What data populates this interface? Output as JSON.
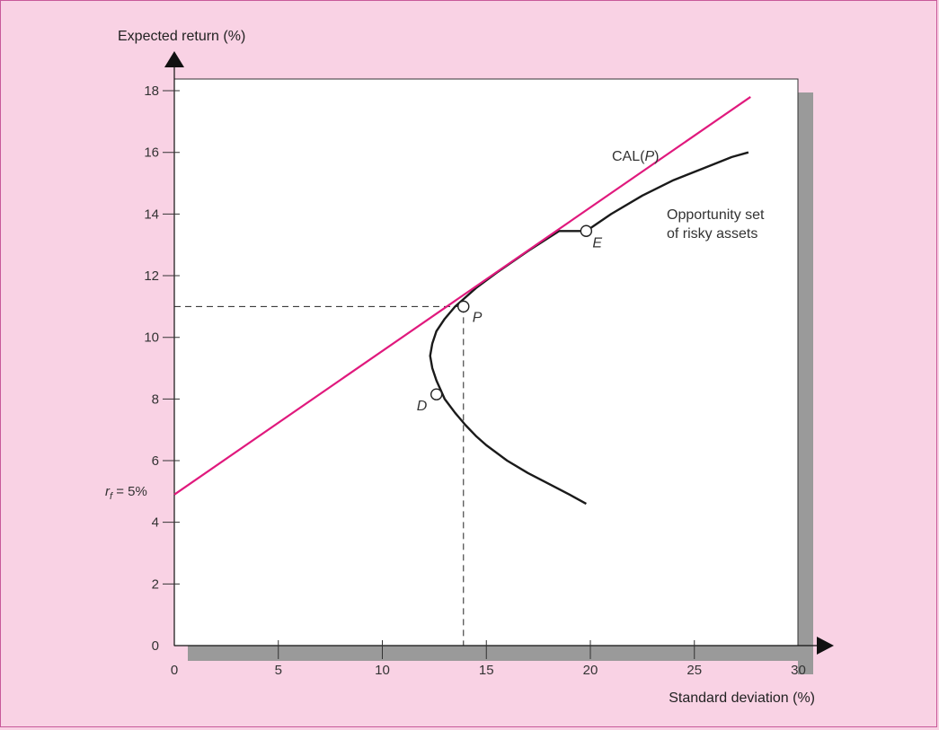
{
  "chart_data": {
    "type": "line",
    "xlabel": "Standard deviation (%)",
    "ylabel": "Expected return (%)",
    "xlim": [
      0,
      30
    ],
    "ylim": [
      0,
      18
    ],
    "x_ticks": [
      0,
      5,
      10,
      15,
      20,
      25,
      30
    ],
    "y_ticks": [
      0,
      2,
      4,
      6,
      8,
      10,
      12,
      14,
      16,
      18
    ],
    "grid": false,
    "series": [
      {
        "name": "CAL(P)",
        "color": "#e0197d",
        "x": [
          0,
          27.7
        ],
        "y": [
          4.9,
          17.8
        ]
      },
      {
        "name": "Opportunity set of risky assets",
        "color": "#1a1a1a",
        "x": [
          19.8,
          19.0,
          18.0,
          17.0,
          16.0,
          15.0,
          14.5,
          14.0,
          13.5,
          13.0,
          12.6,
          12.4,
          12.3,
          12.4,
          12.6,
          13.0,
          13.5,
          14.5,
          15.5,
          17.0,
          18.5,
          19.8
        ],
        "y": [
          4.6,
          4.9,
          5.25,
          5.6,
          6.0,
          6.5,
          6.8,
          7.15,
          7.55,
          8.0,
          8.6,
          9.0,
          9.4,
          9.8,
          10.2,
          10.6,
          11.0,
          11.6,
          12.1,
          12.8,
          13.45,
          14.0
        ],
        "x_upper": [
          19.8,
          21.0,
          22.5,
          24.0,
          25.5,
          26.8,
          27.6
        ],
        "y_upper": [
          13.45,
          14.0,
          14.6,
          15.1,
          15.5,
          15.85,
          16.0
        ]
      }
    ],
    "points": [
      {
        "label": "P",
        "x": 13.9,
        "y": 11.0
      },
      {
        "label": "E",
        "x": 19.8,
        "y": 13.45
      },
      {
        "label": "D",
        "x": 12.6,
        "y": 8.15
      }
    ],
    "reference_lines": {
      "x": 13.9,
      "y": 11.0
    },
    "annotations": {
      "cal_label": "CAL(P)",
      "opportunity_line1": "Opportunity set",
      "opportunity_line2": "of risky assets",
      "rf_label": "r_f = 5%",
      "rf_value": 5
    },
    "colors": {
      "cal": "#e0197d",
      "curve": "#1a1a1a",
      "background": "#f9d2e4",
      "shadow": "#9a9a9a"
    }
  }
}
